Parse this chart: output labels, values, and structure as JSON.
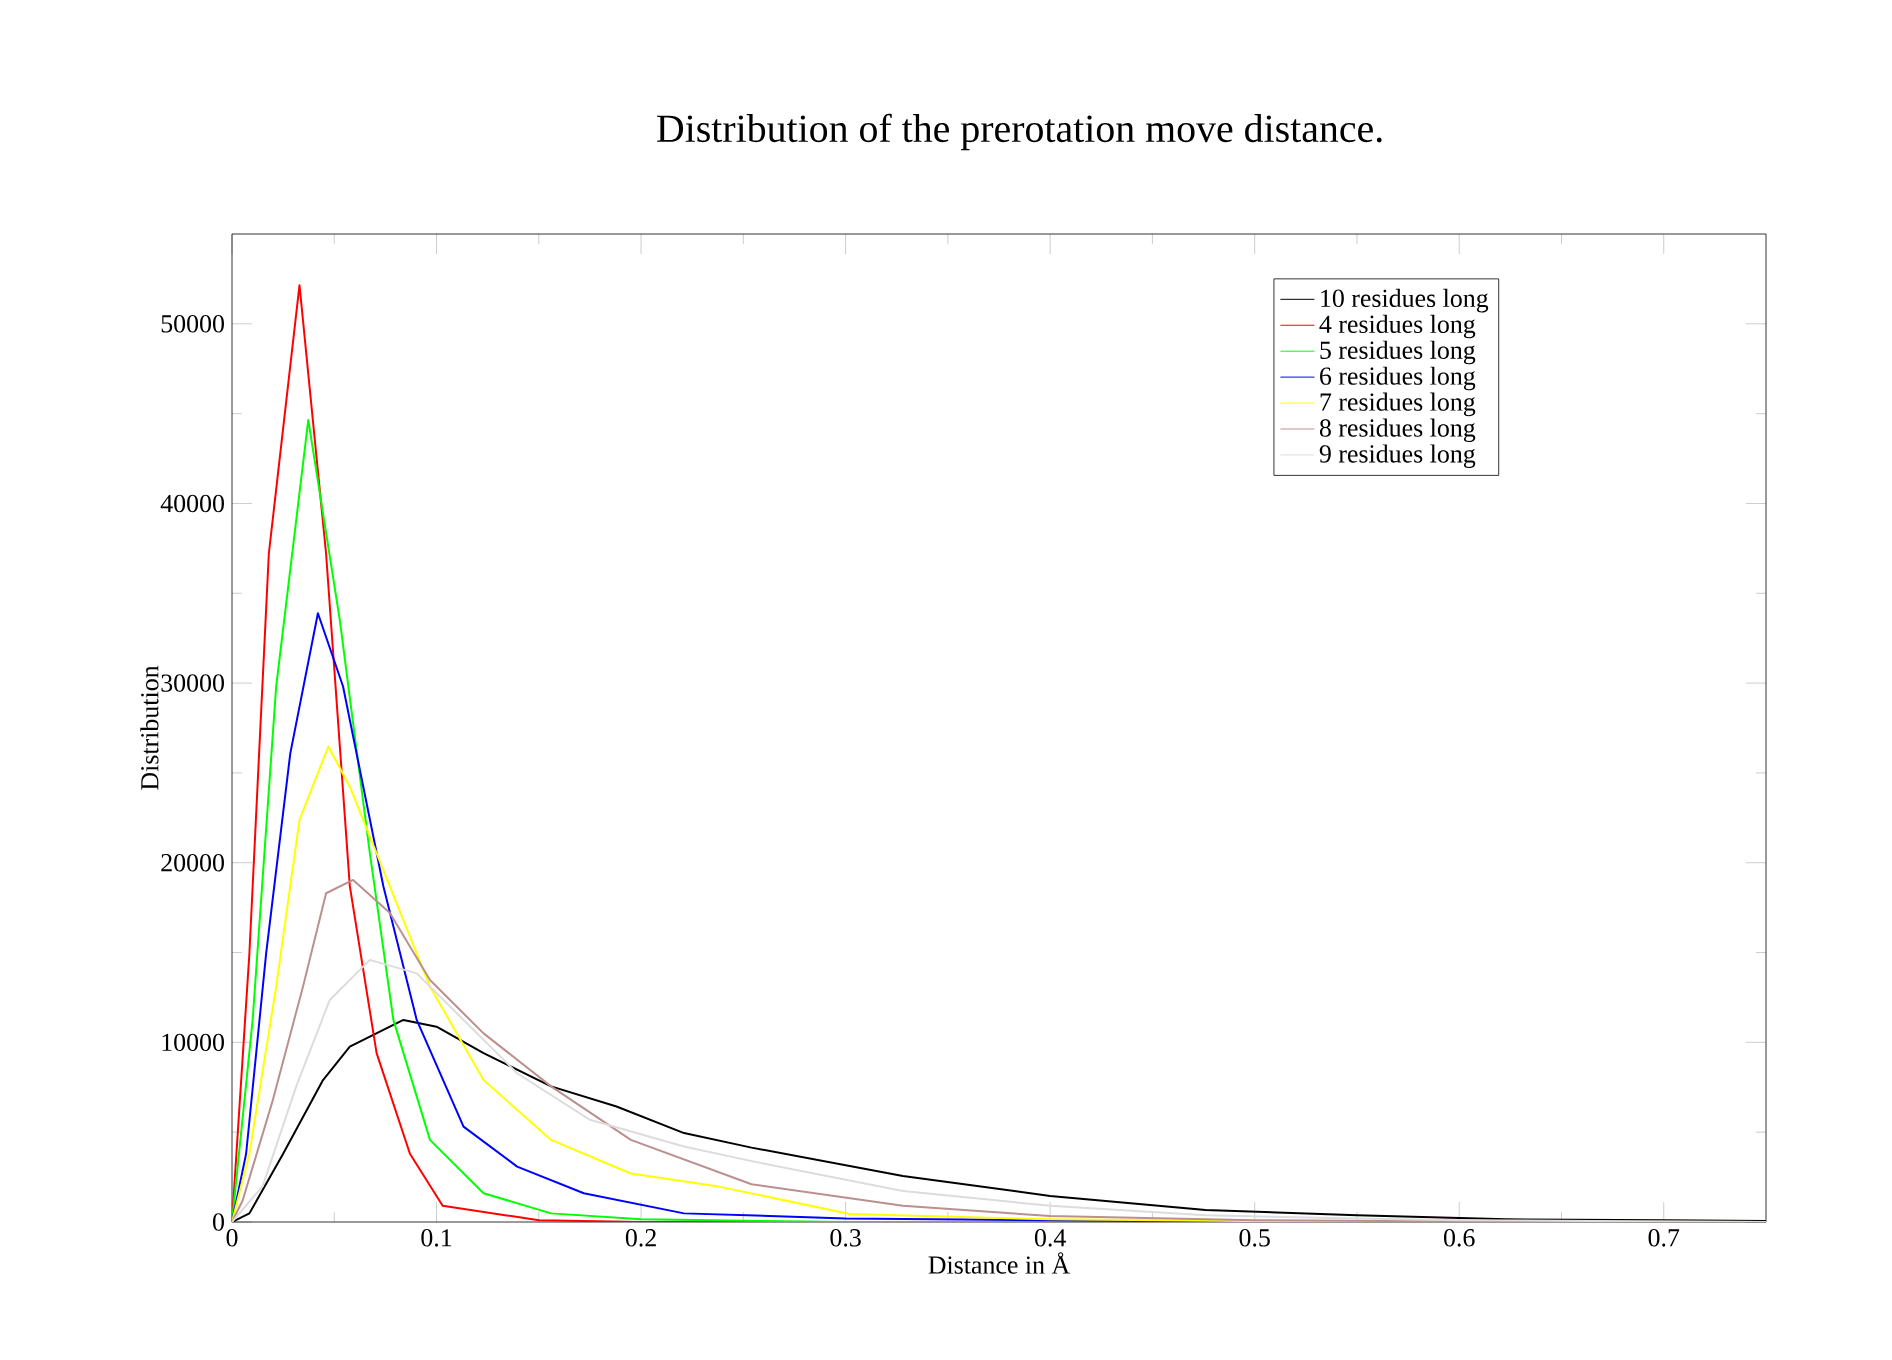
{
  "chart_data": {
    "type": "line",
    "title": "Distribution of the prerotation move distance.",
    "xlabel": "Distance in Å",
    "ylabel": "Distribution",
    "xlim": [
      0,
      0.75
    ],
    "ylim": [
      0,
      55000
    ],
    "xticks": [
      0,
      {
        "value": 0.05,
        "label": null
      },
      0.1,
      {
        "value": 0.15,
        "label": null
      },
      0.2,
      {
        "value": 0.25,
        "label": null
      },
      0.3,
      {
        "value": 0.35,
        "label": null
      },
      0.4,
      {
        "value": 0.45,
        "label": null
      },
      0.5,
      {
        "value": 0.55,
        "label": null
      },
      0.6,
      {
        "value": 0.65,
        "label": null
      },
      0.7
    ],
    "yticks": [
      0,
      {
        "value": 5000,
        "label": null
      },
      10000,
      {
        "value": 15000,
        "label": null
      },
      20000,
      {
        "value": 25000,
        "label": null
      },
      30000,
      {
        "value": 35000,
        "label": null
      },
      40000,
      {
        "value": 45000,
        "label": null
      },
      50000
    ],
    "legend": "top right",
    "grid": false,
    "marker": "none",
    "line_style": "solid",
    "series": [
      {
        "name": "10 residues long",
        "color": "#000000",
        "x": [
          0,
          0.0085,
          0.025,
          0.0445,
          0.0576,
          0.0838,
          0.1,
          0.123,
          0.156,
          0.188,
          0.221,
          0.254,
          0.328,
          0.4,
          0.476,
          0.55,
          0.623,
          0.7,
          0.75
        ],
        "values": [
          0,
          480,
          3800,
          7900,
          9760,
          11250,
          10870,
          9400,
          7550,
          6430,
          4950,
          4140,
          2560,
          1450,
          670,
          370,
          150,
          100,
          50
        ]
      },
      {
        "name": "4 residues long",
        "color": "#ff0000",
        "x": [
          0,
          0.0085,
          0.018,
          0.033,
          0.046,
          0.0576,
          0.0707,
          0.087,
          0.103,
          0.15,
          0.2,
          0.3,
          0.75
        ],
        "values": [
          0,
          14950,
          37200,
          52150,
          37200,
          18700,
          9400,
          3800,
          900,
          100,
          0,
          0,
          0
        ]
      },
      {
        "name": "5 residues long",
        "color": "#00ff00",
        "x": [
          0,
          0.0101,
          0.0216,
          0.0373,
          0.0527,
          0.0674,
          0.0789,
          0.0968,
          0.123,
          0.156,
          0.2,
          0.3,
          0.75
        ],
        "values": [
          0,
          11250,
          29810,
          44650,
          33520,
          20520,
          11250,
          4570,
          1600,
          480,
          150,
          0,
          0
        ]
      },
      {
        "name": "6 residues long",
        "color": "#0000ff",
        "x": [
          0,
          0.0069,
          0.0167,
          0.0285,
          0.042,
          0.0543,
          0.074,
          0.0903,
          0.1132,
          0.1394,
          0.172,
          0.221,
          0.3,
          0.45,
          0.5,
          0.75
        ],
        "values": [
          0,
          3800,
          14950,
          26090,
          33890,
          29810,
          18690,
          11250,
          5310,
          3080,
          1600,
          480,
          200,
          50,
          0,
          0
        ]
      },
      {
        "name": "7 residues long",
        "color": "#ffff00",
        "x": [
          0,
          0.0085,
          0.0216,
          0.033,
          0.0471,
          0.0576,
          0.0772,
          0.0968,
          0.123,
          0.156,
          0.195,
          0.238,
          0.302,
          0.4,
          0.5,
          0.75
        ],
        "values": [
          0,
          3800,
          13100,
          22380,
          26470,
          24240,
          18690,
          13100,
          7900,
          4570,
          2700,
          1970,
          450,
          150,
          50,
          0
        ]
      },
      {
        "name": "8 residues long",
        "color": "#bc8f8f",
        "x": [
          0,
          0.0052,
          0.02,
          0.0347,
          0.046,
          0.0592,
          0.0772,
          0.0968,
          0.123,
          0.156,
          0.195,
          0.254,
          0.328,
          0.4,
          0.5,
          0.6,
          0.75
        ],
        "values": [
          0,
          1200,
          6800,
          13100,
          18300,
          19040,
          17200,
          13470,
          10500,
          7550,
          4570,
          2100,
          900,
          330,
          100,
          30,
          0
        ]
      },
      {
        "name": "9 residues long",
        "color": "#dcdcdc",
        "x": [
          0,
          0.015,
          0.0314,
          0.0478,
          0.0674,
          0.0903,
          0.1132,
          0.1394,
          0.175,
          0.221,
          0.254,
          0.328,
          0.4,
          0.476,
          0.55,
          0.6,
          0.7,
          0.75
        ],
        "values": [
          0,
          2000,
          7550,
          12360,
          14590,
          13840,
          11250,
          8280,
          5690,
          4200,
          3390,
          1720,
          900,
          370,
          200,
          100,
          30,
          0
        ]
      }
    ]
  }
}
